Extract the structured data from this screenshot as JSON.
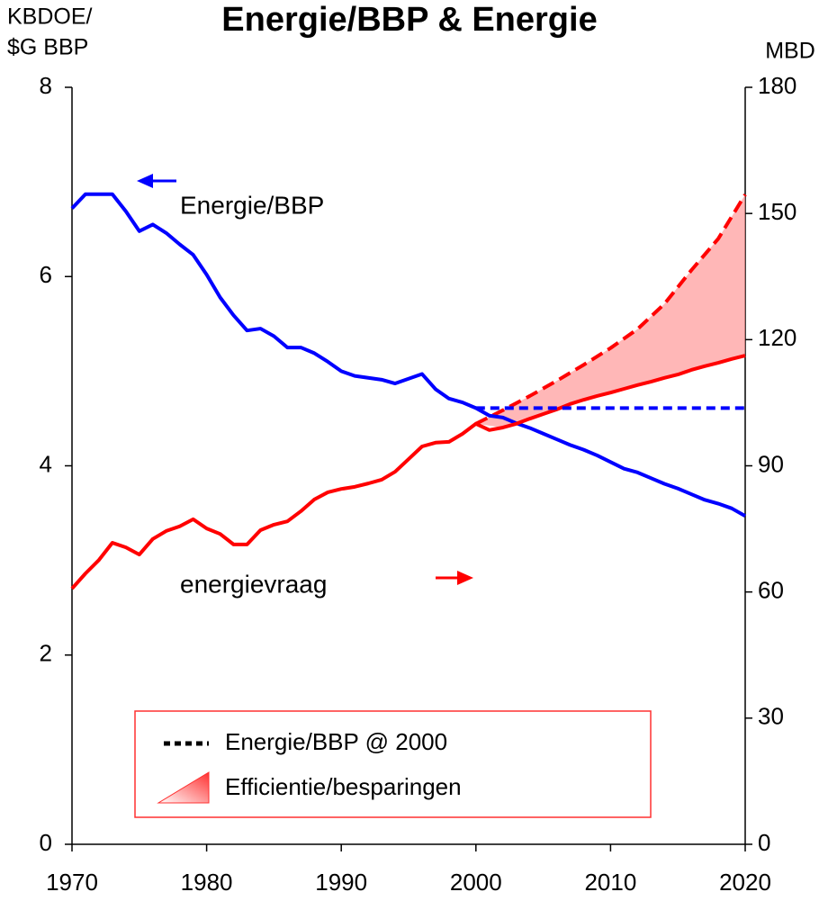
{
  "chart_data": {
    "type": "line",
    "title": "Energie/BBP & Energie",
    "y_label_lines": [
      "KBDOE/",
      "$G BBP"
    ],
    "y2_label": "MBD",
    "x": [
      1970,
      1971,
      1972,
      1973,
      1974,
      1975,
      1976,
      1977,
      1978,
      1979,
      1980,
      1981,
      1982,
      1983,
      1984,
      1985,
      1986,
      1987,
      1988,
      1989,
      1990,
      1991,
      1992,
      1993,
      1994,
      1995,
      1996,
      1997,
      1998,
      1999,
      2000,
      2001,
      2002,
      2003,
      2004,
      2005,
      2006,
      2007,
      2008,
      2009,
      2010,
      2011,
      2012,
      2013,
      2014,
      2015,
      2016,
      2017,
      2018,
      2019,
      2020
    ],
    "xlim": [
      1970,
      2020
    ],
    "xticks": [
      1970,
      1980,
      1990,
      2000,
      2010,
      2020
    ],
    "ylim": [
      0,
      8
    ],
    "yticks": [
      0,
      2,
      4,
      6,
      8
    ],
    "y2lim": [
      0,
      180
    ],
    "y2ticks": [
      0,
      30,
      60,
      90,
      120,
      150,
      180
    ],
    "series": [
      {
        "name": "Energie/BBP",
        "color": "#0000ff",
        "values": [
          6.72,
          6.87,
          6.87,
          6.87,
          6.69,
          6.48,
          6.55,
          6.46,
          6.34,
          6.23,
          6.02,
          5.78,
          5.59,
          5.43,
          5.45,
          5.37,
          5.25,
          5.25,
          5.19,
          5.1,
          5.0,
          4.95,
          4.93,
          4.91,
          4.87,
          4.92,
          4.97,
          4.81,
          4.71,
          4.67,
          4.61,
          4.53,
          4.51,
          4.45,
          4.4,
          4.34,
          4.28,
          4.22,
          4.17,
          4.11,
          4.04,
          3.97,
          3.93,
          3.87,
          3.81,
          3.76,
          3.7,
          3.64,
          3.6,
          3.55,
          3.47
        ]
      },
      {
        "name": "energievraag",
        "color": "#ff0000",
        "axis": "y2",
        "values": [
          60.8,
          64.4,
          67.6,
          71.7,
          70.6,
          68.9,
          72.6,
          74.5,
          75.6,
          77.3,
          75.1,
          73.8,
          71.3,
          71.3,
          74.7,
          76.0,
          76.8,
          79.2,
          82.0,
          83.7,
          84.5,
          85.0,
          85.8,
          86.7,
          88.6,
          91.6,
          94.6,
          95.5,
          95.7,
          97.6,
          100.0,
          98.5,
          99.1,
          100.0,
          101.2,
          102.3,
          103.4,
          104.7,
          105.7,
          106.6,
          107.4,
          108.3,
          109.2,
          110.0,
          110.9,
          111.7,
          112.8,
          113.7,
          114.5,
          115.4,
          116.2
        ]
      },
      {
        "name": "Energie/BBP @ 2000",
        "color": "#0000ff",
        "legend_color": "#000000",
        "dashed": true,
        "x": [
          2000,
          2020
        ],
        "values": [
          4.61,
          4.61
        ]
      }
    ],
    "projection": {
      "color": "#ff0000",
      "axis": "y2",
      "x": [
        2000,
        2002,
        2004,
        2006,
        2008,
        2010,
        2012,
        2014,
        2016,
        2018,
        2020
      ],
      "values": [
        100.0,
        103.2,
        106.6,
        110.2,
        114.0,
        118.0,
        122.5,
        128.5,
        136.5,
        144.0,
        154.5
      ]
    },
    "area": {
      "name": "Efficientie/besparingen",
      "color": "#ff9999"
    }
  }
}
